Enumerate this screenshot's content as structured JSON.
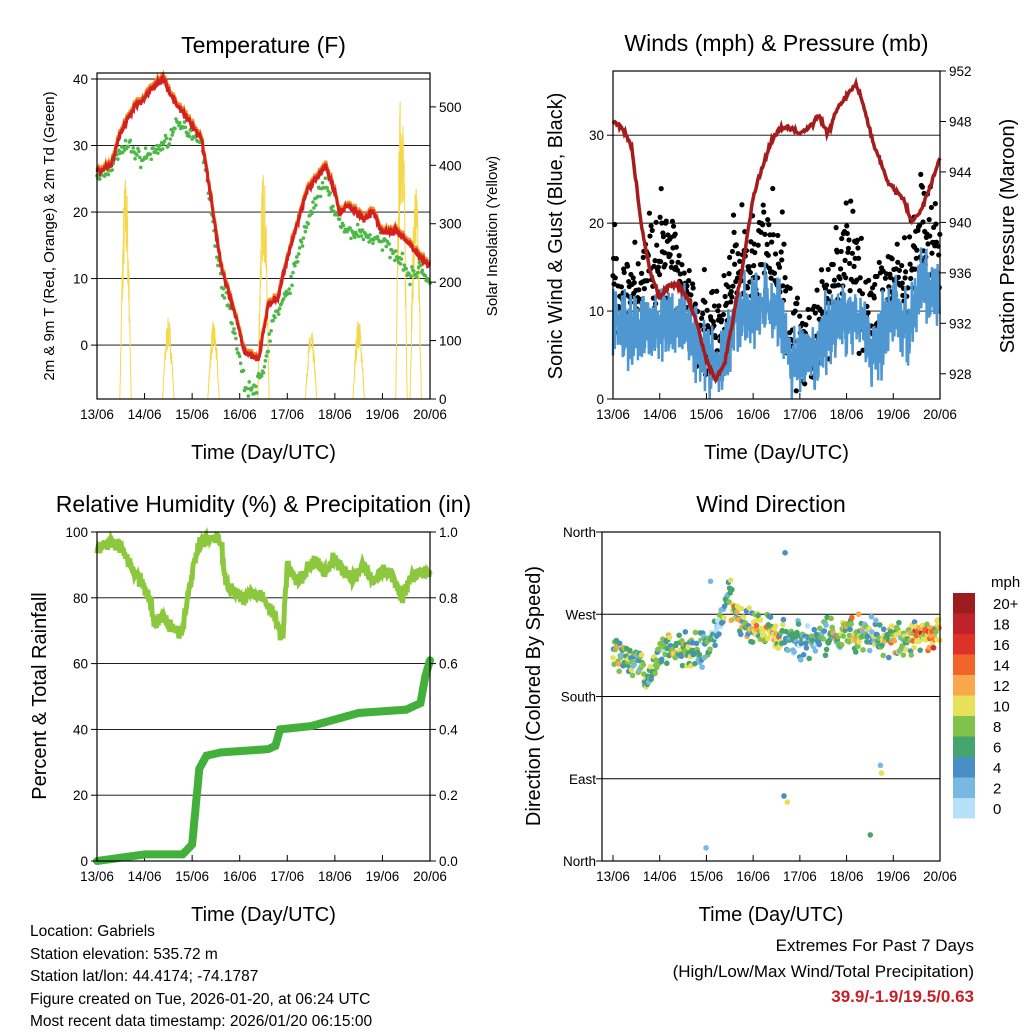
{
  "colors": {
    "temp": "#d42020",
    "temp_edge": "#f08a24",
    "dewpoint": "#4db848",
    "solar": "#f5d84a",
    "wind": "#4f97d0",
    "gust": "#000000",
    "pressure": "#a51c1c",
    "rh": "#8cc83e",
    "precip": "#44b03c",
    "extremes": "#c8202a"
  },
  "chart_data": [
    {
      "type": "line",
      "title": "Temperature (F)",
      "xlabel": "Time (Day/UTC)",
      "ylabel": "2m & 9m T (Red, Orange) & 2m Td (Green)",
      "ylabel_right": "Solar Insolation (Yellow)",
      "xticks": [
        "13/06",
        "14/06",
        "15/06",
        "16/06",
        "17/06",
        "18/06",
        "19/06",
        "20/06"
      ],
      "yticks": [
        0,
        10,
        20,
        30,
        40
      ],
      "yticks_right": [
        0,
        100,
        200,
        300,
        400,
        500
      ],
      "ylim": [
        -8.1,
        40.9
      ],
      "ylim_right": [
        0,
        558
      ],
      "xlim_days": [
        0,
        7
      ],
      "series": [
        {
          "name": "2m T",
          "x": [
            0,
            0.3,
            0.5,
            0.8,
            1,
            1.2,
            1.4,
            1.6,
            2,
            2.2,
            2.4,
            2.6,
            2.8,
            3,
            3.1,
            3.4,
            3.6,
            3.8,
            4,
            4.2,
            4.4,
            4.6,
            4.8,
            5,
            5.1,
            5.3,
            5.6,
            5.8,
            6,
            6.3,
            6.6,
            6.8,
            7
          ],
          "y": [
            26,
            27,
            32,
            36,
            37,
            39,
            40,
            37,
            33,
            31,
            22,
            12,
            7,
            2,
            -1,
            -2,
            6,
            7,
            13,
            18,
            23,
            25,
            27,
            23,
            20,
            21,
            19,
            20,
            17,
            17,
            15,
            13,
            12
          ]
        },
        {
          "name": "2m Td",
          "x": [
            0,
            0.3,
            0.5,
            0.7,
            0.9,
            1.2,
            1.5,
            1.7,
            2,
            2.2,
            2.4,
            2.6,
            2.8,
            3,
            3.1,
            3.3,
            3.5,
            3.7,
            3.9,
            4.1,
            4.4,
            4.6,
            4.8,
            5,
            5.2,
            5.5,
            5.8,
            6.1,
            6.4,
            6.6,
            6.8,
            7
          ],
          "y": [
            25,
            27,
            29,
            30,
            28,
            29,
            31,
            33,
            32,
            31,
            20,
            10,
            5,
            -2,
            -6,
            -7,
            -4,
            4,
            6,
            10,
            18,
            22,
            24,
            20,
            17,
            17,
            16,
            15,
            13,
            10,
            12,
            9
          ]
        },
        {
          "name": "Solar Insolation",
          "peaks_day": [
            0.6,
            1.5,
            2.45,
            3.5,
            4.5,
            5.5,
            6.4,
            6.7
          ],
          "peaks_value": [
            390,
            140,
            135,
            400,
            120,
            140,
            555,
            380
          ]
        }
      ]
    },
    {
      "type": "line",
      "title": "Winds (mph) & Pressure (mb)",
      "xlabel": "Time (Day/UTC)",
      "ylabel": "Sonic Wind & Gust (Blue, Black)",
      "ylabel_right": "Station Pressure (Maroon)",
      "xticks": [
        "13/06",
        "14/06",
        "15/06",
        "16/06",
        "17/06",
        "18/06",
        "19/06",
        "20/06"
      ],
      "yticks": [
        0,
        10,
        20,
        30
      ],
      "yticks_right": [
        928,
        932,
        936,
        940,
        944,
        948,
        952
      ],
      "ylim": [
        0,
        37.3
      ],
      "ylim_right": [
        926,
        952
      ],
      "xlim_days": [
        0,
        7
      ],
      "series": [
        {
          "name": "Wind",
          "x": [
            0,
            0.5,
            1,
            1.5,
            2,
            2.3,
            2.6,
            3,
            3.3,
            3.6,
            3.8,
            4,
            4.3,
            4.6,
            5,
            5.3,
            5.5,
            5.8,
            6,
            6.3,
            6.6,
            7
          ],
          "y": [
            9,
            8,
            8,
            9,
            5,
            3,
            10,
            10,
            11,
            9,
            4,
            5,
            4,
            8,
            9,
            10,
            5,
            8,
            10,
            8,
            13,
            11
          ]
        },
        {
          "name": "Gust",
          "x": [
            0,
            0.5,
            1,
            1.5,
            2,
            2.3,
            2.6,
            3,
            3.3,
            3.6,
            3.8,
            4,
            4.3,
            4.6,
            5,
            5.3,
            5.5,
            5.8,
            6,
            6.3,
            6.6,
            7
          ],
          "y": [
            12,
            12,
            18,
            13,
            8,
            7,
            15,
            15,
            17,
            14,
            7,
            7,
            6,
            12,
            17,
            13,
            9,
            12,
            14,
            11,
            19,
            16
          ]
        },
        {
          "name": "Pressure",
          "x": [
            0,
            0.2,
            0.4,
            0.6,
            0.8,
            1,
            1.2,
            1.4,
            1.6,
            1.8,
            2,
            2.2,
            2.4,
            2.6,
            2.8,
            3,
            3.2,
            3.4,
            3.6,
            3.8,
            4,
            4.2,
            4.4,
            4.6,
            4.8,
            5,
            5.2,
            5.3,
            5.6,
            5.9,
            6.2,
            6.4,
            6.6,
            6.8,
            7
          ],
          "y": [
            948,
            947.5,
            946,
            940,
            936,
            934,
            935,
            935,
            934,
            932,
            929,
            927.5,
            929,
            933,
            937,
            942,
            944.5,
            946.5,
            947.5,
            947.5,
            947,
            947.5,
            948.5,
            947,
            949,
            950,
            951,
            950,
            946,
            943,
            942,
            940,
            941,
            943,
            945
          ]
        }
      ]
    },
    {
      "type": "line",
      "title": "Relative Humidity (%) & Precipitation (in)",
      "xlabel": "Time (Day/UTC)",
      "ylabel": "Percent & Total Rainfall",
      "xticks": [
        "13/06",
        "14/06",
        "15/06",
        "16/06",
        "17/06",
        "18/06",
        "19/06",
        "20/06"
      ],
      "yticks": [
        0,
        20,
        40,
        60,
        80,
        100
      ],
      "yticks_right": [
        "0.0",
        "0.2",
        "0.4",
        "0.6",
        "0.8",
        "1.0"
      ],
      "ylim": [
        0,
        100
      ],
      "ylim_right": [
        0,
        1
      ],
      "xlim_days": [
        0,
        7
      ],
      "series": [
        {
          "name": "Relative Humidity",
          "x": [
            0,
            0.3,
            0.5,
            0.7,
            0.9,
            1.1,
            1.2,
            1.4,
            1.6,
            1.8,
            1.9,
            2.1,
            2.3,
            2.5,
            2.6,
            2.7,
            2.9,
            3.1,
            3.3,
            3.5,
            3.7,
            3.9,
            4,
            4.2,
            4.4,
            4.6,
            4.8,
            5,
            5.2,
            5.4,
            5.6,
            5.8,
            6,
            6.2,
            6.4,
            6.6,
            6.8,
            7
          ],
          "y": [
            95,
            97,
            96,
            90,
            85,
            80,
            72,
            75,
            70,
            70,
            80,
            95,
            98,
            98,
            97,
            85,
            82,
            80,
            82,
            80,
            75,
            68,
            90,
            85,
            88,
            92,
            88,
            92,
            88,
            85,
            90,
            85,
            88,
            87,
            80,
            86,
            88,
            87
          ]
        },
        {
          "name": "Precipitation",
          "x": [
            0,
            0.5,
            1,
            1.8,
            2,
            2.15,
            2.3,
            2.6,
            3.6,
            3.75,
            3.85,
            4.5,
            5,
            5.5,
            6.5,
            6.8,
            6.9,
            7
          ],
          "y": [
            0,
            0.01,
            0.02,
            0.02,
            0.05,
            0.28,
            0.32,
            0.33,
            0.34,
            0.35,
            0.4,
            0.41,
            0.43,
            0.45,
            0.46,
            0.48,
            0.56,
            0.61
          ]
        }
      ]
    },
    {
      "type": "scatter",
      "title": "Wind Direction",
      "xlabel": "Time (Day/UTC)",
      "ylabel": "Direction (Colored By Speed)",
      "xticks": [
        "13/06",
        "14/06",
        "15/06",
        "16/06",
        "17/06",
        "18/06",
        "19/06",
        "20/06"
      ],
      "yticks": [
        "North",
        "East",
        "South",
        "West",
        "North"
      ],
      "ylim_deg": [
        0,
        360
      ],
      "xlim_days": [
        0,
        7
      ],
      "series": [
        {
          "name": "Direction",
          "x": [
            0,
            0.5,
            0.8,
            1,
            1.5,
            2,
            2.5,
            2.7,
            3,
            4,
            5,
            6,
            7
          ],
          "y": [
            230,
            220,
            200,
            230,
            230,
            230,
            290,
            265,
            255,
            240,
            250,
            240,
            250
          ]
        }
      ],
      "legend": {
        "title": "mph",
        "labels": [
          "20+",
          "18",
          "16",
          "14",
          "12",
          "10",
          "8",
          "6",
          "4",
          "2",
          "0"
        ],
        "colors": [
          "#9b1b1e",
          "#c0222a",
          "#dd3127",
          "#f26529",
          "#f8a84a",
          "#e6e158",
          "#7fc24c",
          "#45a56d",
          "#4a8ec6",
          "#7ab8e4",
          "#b5e0f8"
        ],
        "placement": "right"
      }
    }
  ],
  "info": {
    "location": "Location: Gabriels",
    "elevation": "Station elevation: 535.72 m",
    "latlon": "Station lat/lon: 44.4174; -74.1787",
    "created": "Figure created on Tue, 2026-01-20, at 06:24 UTC",
    "timestamp": "Most recent data timestamp: 2026/01/20 06:15:00"
  },
  "extremes": {
    "title": "Extremes For Past 7 Days",
    "subtitle": "(High/Low/Max Wind/Total Precipitation)",
    "values": "39.9/-1.9/19.5/0.63"
  }
}
